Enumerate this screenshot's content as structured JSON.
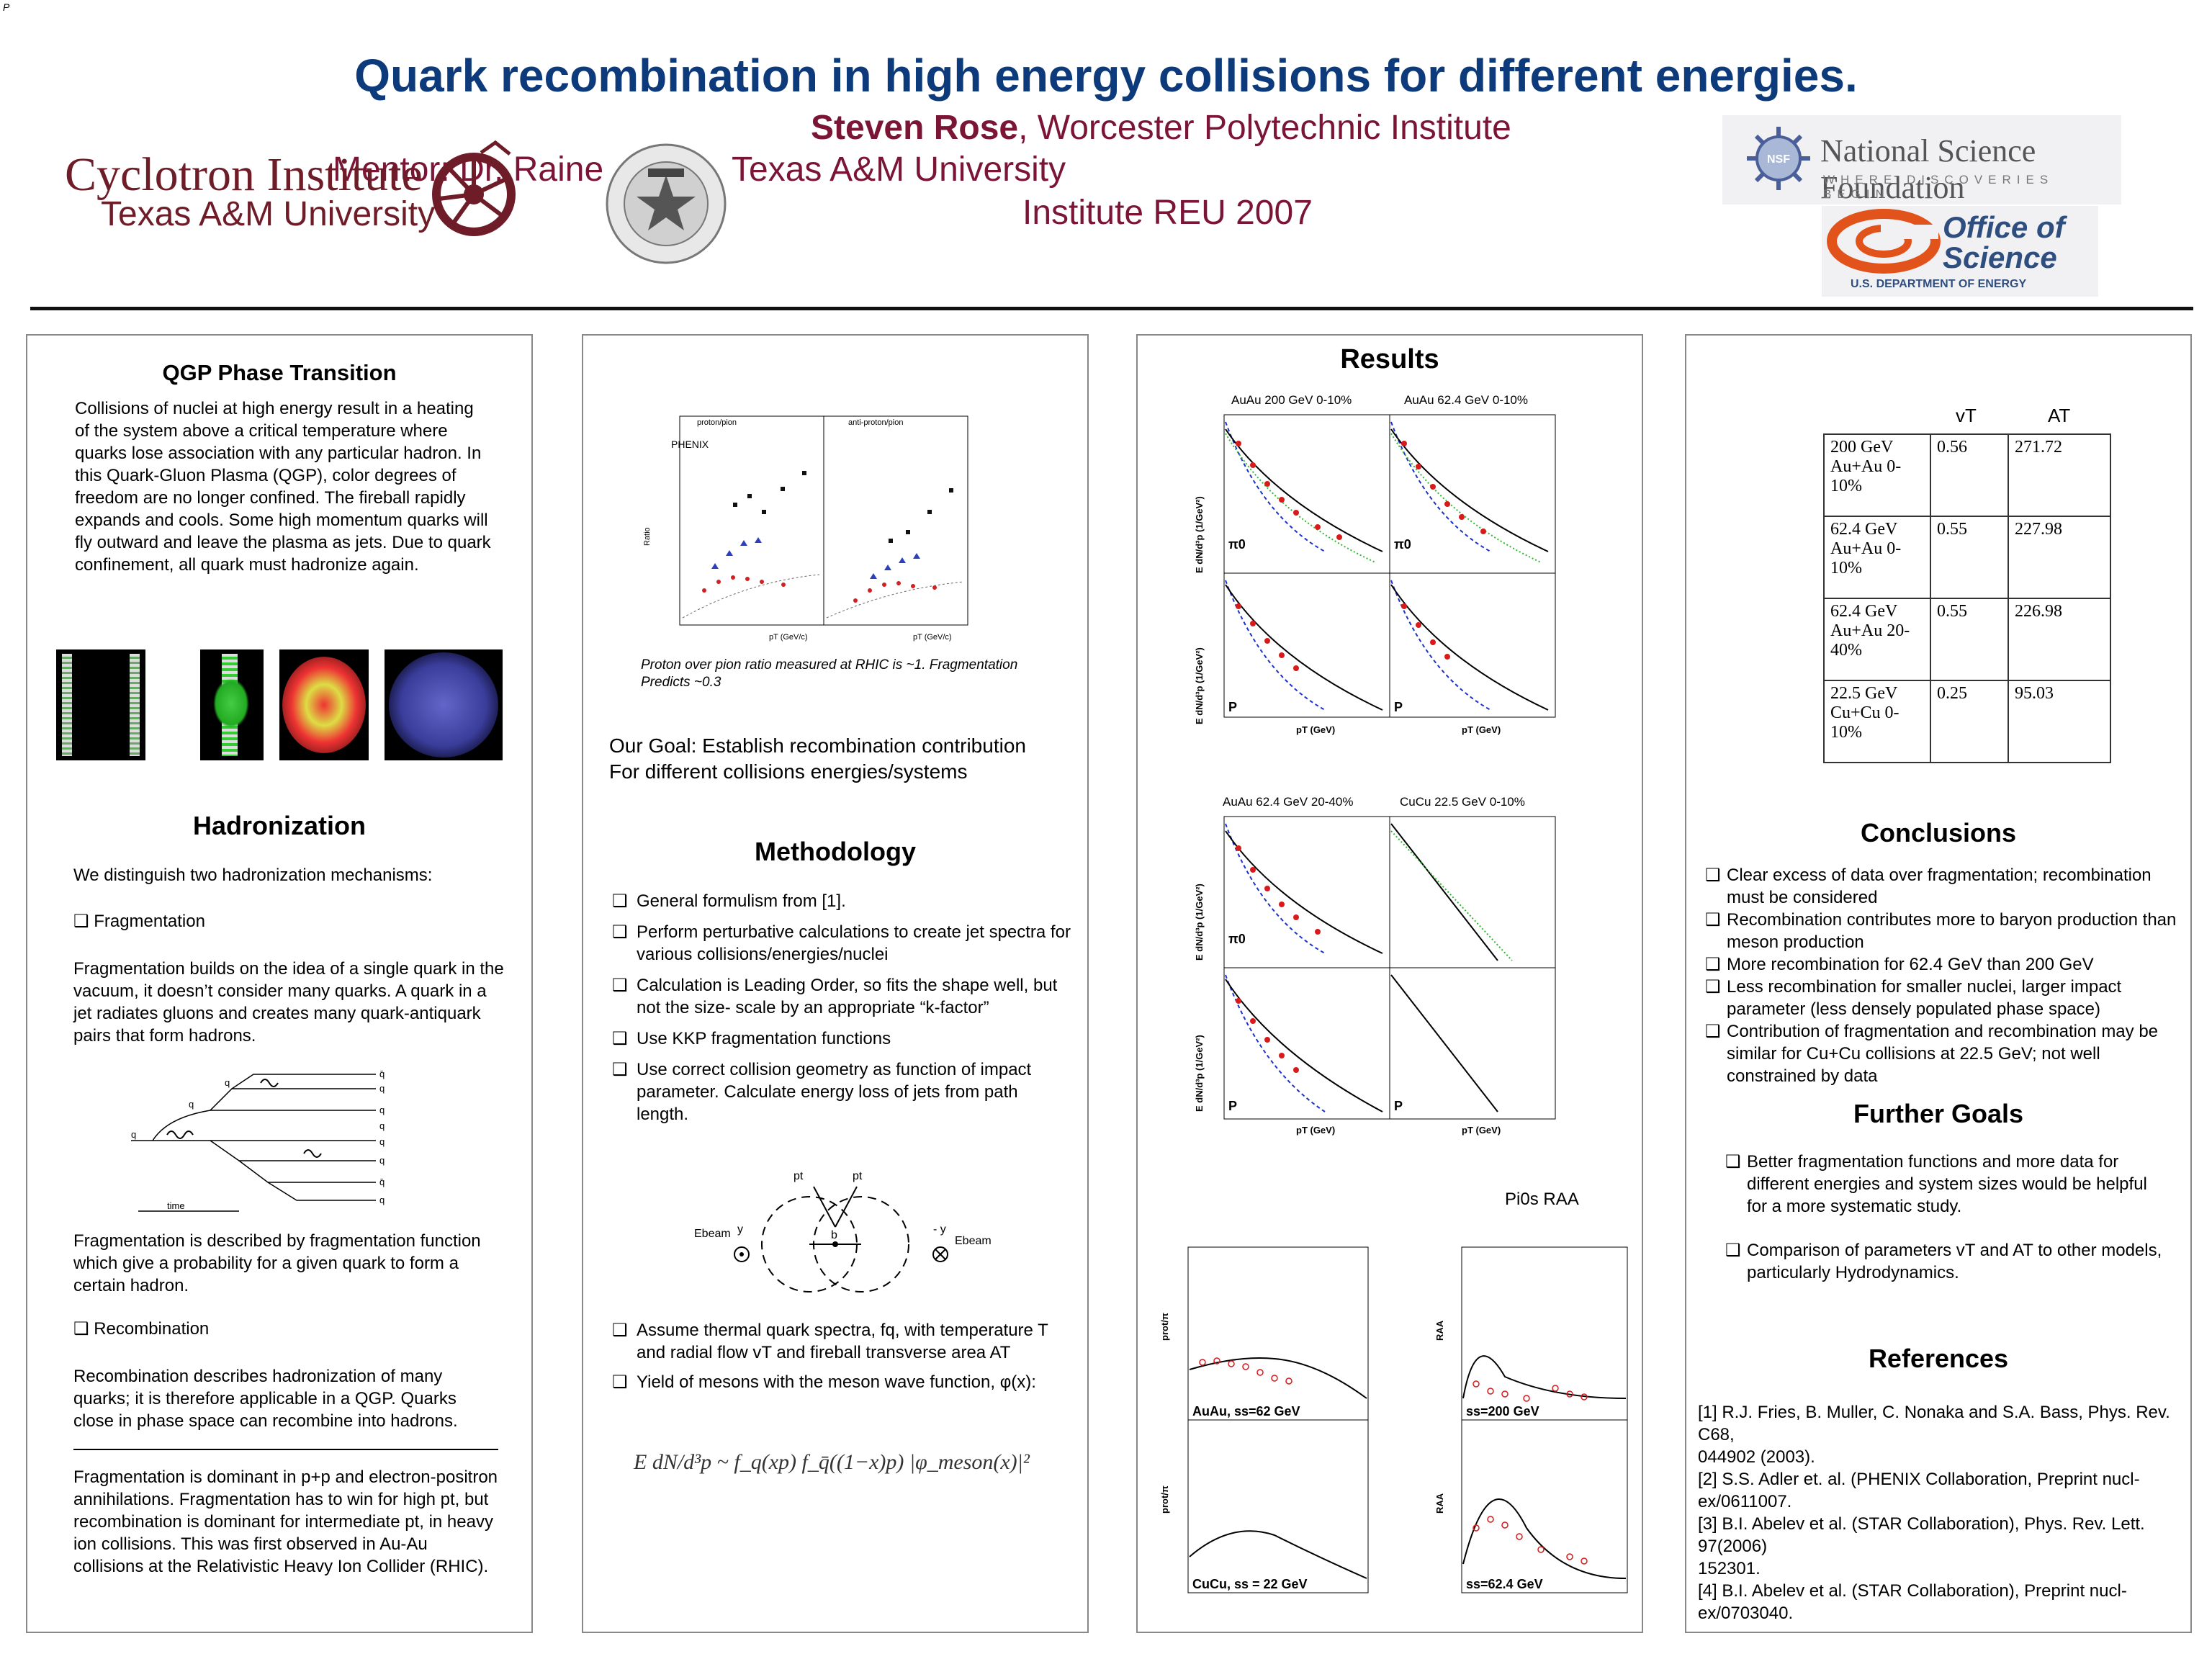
{
  "corner_mark": "P",
  "header": {
    "title": "Quark recombination in high energy collisions for different energies.",
    "author": "Steven Rose",
    "author_affil": ", Worcester Polytechnic Institute",
    "mentor_line": "Mentor: Dr. Rainer Fries, Texas A&M University",
    "mentor_visible_left": "Mentor: Dr. Raine",
    "mentor_visible_right": "Texas A&M University",
    "reu_line": "Institute REU 2007",
    "logo_cyclotron_1": "Cyclotron Institute",
    "logo_cyclotron_2": "Texas A&M University",
    "logo_nsf_1": "National Science Foundation",
    "logo_nsf_2": "WHERE DISCOVERIES BEGIN",
    "logo_doe_1": "Office of",
    "logo_doe_2": "Science",
    "logo_doe_3": "U.S. DEPARTMENT OF ENERGY"
  },
  "col1": {
    "qgp_heading": "QGP Phase Transition",
    "qgp_text": "Collisions of nuclei at high energy result in a heating of the system above a critical temperature where quarks lose association with any particular hadron. In this Quark-Gluon Plasma (QGP), color degrees of freedom are no longer confined. The fireball rapidly expands and cools. Some high momentum quarks will fly outward and leave the plasma as jets. Due to quark confinement, all quark must hadronize again.",
    "hadron_heading": "Hadronization",
    "hadron_intro": "We distinguish two hadronization mechanisms:",
    "frag_label": "Fragmentation",
    "frag_text": "Fragmentation builds on the idea of a single quark in the vacuum, it doesn’t consider many quarks. A quark in a jet radiates gluons and creates many quark-antiquark pairs that form hadrons.",
    "diagram_time": "time",
    "frag_fn_text": "Fragmentation is described by fragmentation function which give a probability for a given quark to form a certain hadron.",
    "recomb_label": "Recombination",
    "recomb_text": "Recombination describes hadronization of many quarks; it is therefore applicable in a QGP. Quarks close in phase space can recombine into hadrons.",
    "dominant_text": "Fragmentation is dominant in p+p and electron-positron annihilations. Fragmentation has to win for high pt, but recombination is dominant for intermediate pt, in heavy ion collisions. This was first observed in Au-Au collisions at the Relativistic Heavy Ion Collider (RHIC)."
  },
  "col2": {
    "fig_caption": "Proton over pion ratio measured at RHIC is ~1. Fragmentation Predicts ~0.3",
    "fig_left_title": "proton/pion",
    "fig_right_title": "anti-proton/pion",
    "fig_phenix": "PHENIX",
    "fig_ylabel": "Ratio",
    "fig_xlabel": "pT (GeV/c)",
    "goal_line1": "Our Goal: Establish recombination contribution",
    "goal_line2": "For different collisions energies/systems",
    "method_heading": "Methodology",
    "method_items": [
      "General formulism from [1].",
      "Perform perturbative calculations to create jet spectra for various collisions/energies/nuclei",
      "Calculation is Leading Order, so fits the shape well, but not the size- scale by an appropriate “k-factor”",
      "Use KKP fragmentation functions",
      "Use correct collision geometry as function of impact parameter. Calculate energy loss of jets from path length."
    ],
    "geo_ebeam": "Ebeam",
    "geo_y": "y",
    "geo_my": "- y",
    "geo_b": "b",
    "geo_pt": "pt",
    "thermal_item": "Assume thermal quark spectra, fq, with temperature T and radial flow vT and fireball transverse area AT",
    "yield_item": "Yield of mesons with the meson wave function, φ(x):",
    "formula": "E dN/d³p ~ f_q(xp) f_q̄((1−x)p) |φ_meson(x)|²"
  },
  "col3": {
    "results_heading": "Results",
    "plot_titles": [
      "AuAu 200 GeV 0-10%",
      "AuAu 62.4 GeV 0-10%",
      "AuAu 62.4 GeV 20-40%",
      "CuCu 22.5 GeV 0-10%"
    ],
    "spectra_ylabel": "E dN/d³p (1/GeV²)",
    "spectra_xlabel": "pT (GeV)",
    "pi0": "π0",
    "p": "P",
    "raa_title": "Pi0s RAA",
    "ratio_labels": [
      "AuAu, ss=62 GeV",
      "CuCu, ss = 22 GeV"
    ],
    "raa_labels": [
      "ss=200 GeV",
      "ss=62.4 GeV"
    ],
    "ratio_ylabel": "prot/π",
    "raa_ylabel": "RAA"
  },
  "col4": {
    "table_headers": [
      "vT",
      "AT"
    ],
    "table_rows": [
      {
        "label": "200 GeV Au+Au 0-10%",
        "vt": "0.56",
        "at": "271.72"
      },
      {
        "label": "62.4 GeV Au+Au 0-10%",
        "vt": "0.55",
        "at": "227.98"
      },
      {
        "label": "62.4 GeV Au+Au 20-40%",
        "vt": "0.55",
        "at": "226.98"
      },
      {
        "label": "22.5 GeV Cu+Cu 0-10%",
        "vt": "0.25",
        "at": "95.03"
      }
    ],
    "conclusions_heading": "Conclusions",
    "conclusions": [
      "Clear excess of data over fragmentation; recombination must be considered",
      "Recombination contributes more to baryon production than meson production",
      "More recombination for 62.4 GeV than 200 GeV",
      "Less recombination for smaller nuclei, larger impact parameter (less densely populated phase space)",
      "Contribution of fragmentation and recombination may be similar for Cu+Cu collisions at 22.5 GeV; not well constrained by data"
    ],
    "further_heading": "Further Goals",
    "further": [
      "Better fragmentation functions and more data for different energies and system sizes would be helpful for a more systematic study.",
      "Comparison of parameters vT and AT to other models, particularly Hydrodynamics."
    ],
    "references_heading": "References",
    "references": [
      "[1] R.J. Fries, B. Muller, C. Nonaka and S.A. Bass, Phys. Rev. C68,",
      "044902 (2003).",
      "[2] S.S. Adler et. al. (PHENIX Collaboration, Preprint nucl-ex/0611007.",
      "[3] B.I. Abelev et al. (STAR Collaboration), Phys. Rev. Lett. 97(2006)",
      "152301.",
      "[4] B.I. Abelev et al. (STAR Collaboration), Preprint nucl-ex/0703040."
    ]
  }
}
